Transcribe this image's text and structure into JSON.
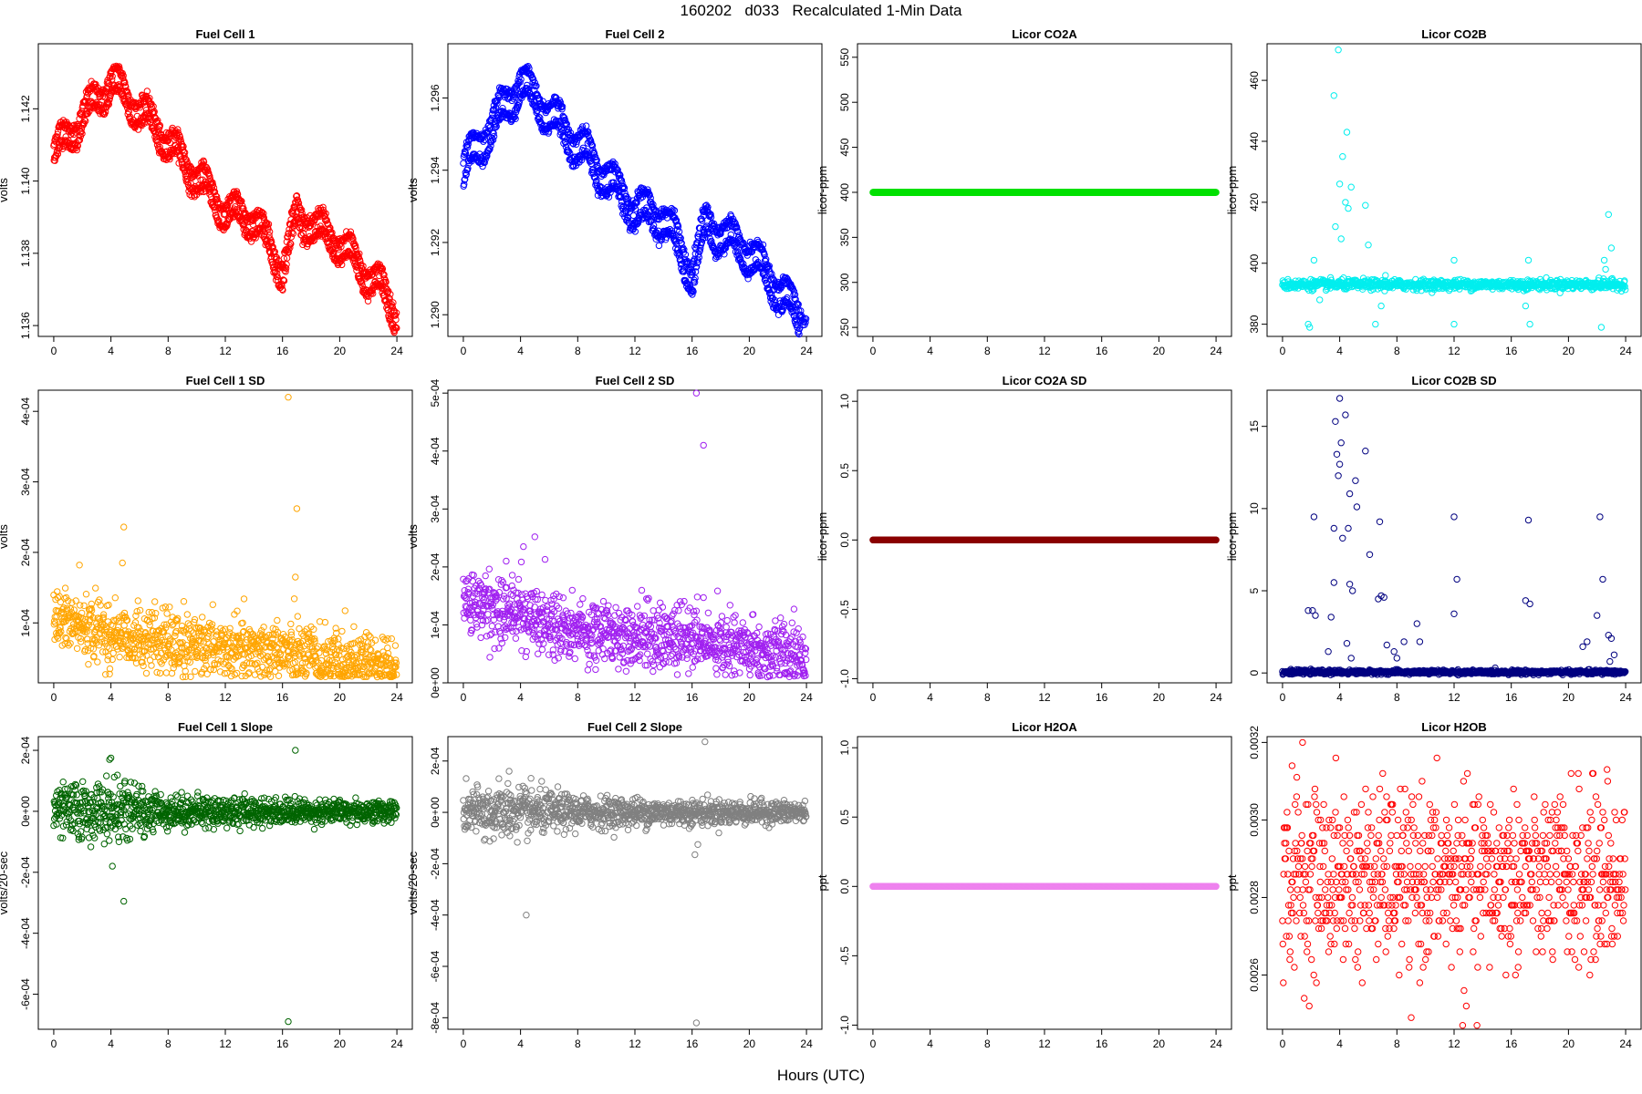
{
  "figure": {
    "title": "160202   d033   Recalculated 1-Min Data",
    "xlabel": "Hours (UTC)"
  },
  "chart_data": [
    {
      "type": "scatter",
      "title": "Fuel Cell 1",
      "ylabel": "volts",
      "xlim": [
        0,
        24
      ],
      "ylim": [
        1.1357,
        1.1438
      ],
      "x_ticks": [
        0,
        4,
        8,
        12,
        16,
        20,
        24
      ],
      "y_ticks": [
        1.136,
        1.138,
        1.14,
        1.142
      ],
      "y_tick_labels": [
        "1.136",
        "1.138",
        "1.140",
        "1.142"
      ],
      "color": "#ff0000",
      "pattern": {
        "kind": "dual_band",
        "keys": [
          [
            0,
            1.141
          ],
          [
            4,
            1.143
          ],
          [
            7,
            1.1418
          ],
          [
            12,
            1.1394
          ],
          [
            14,
            1.1392
          ],
          [
            16,
            1.1378
          ],
          [
            17,
            1.1393
          ],
          [
            20,
            1.1385
          ],
          [
            23,
            1.1372
          ],
          [
            24,
            1.1366
          ]
        ],
        "offset": -0.0005,
        "noise": 0.00015
      }
    },
    {
      "type": "scatter",
      "title": "Fuel Cell 2",
      "ylabel": "volts",
      "xlim": [
        0,
        24
      ],
      "ylim": [
        1.2894,
        1.2975
      ],
      "x_ticks": [
        0,
        4,
        8,
        12,
        16,
        20,
        24
      ],
      "y_ticks": [
        1.29,
        1.292,
        1.294,
        1.296
      ],
      "y_tick_labels": [
        "1.290",
        "1.292",
        "1.294",
        "1.296"
      ],
      "color": "#0000ff",
      "pattern": {
        "kind": "dual_band",
        "keys": [
          [
            0,
            1.2943
          ],
          [
            4,
            1.2967
          ],
          [
            8,
            1.295
          ],
          [
            12,
            1.2932
          ],
          [
            14,
            1.293
          ],
          [
            16,
            1.2914
          ],
          [
            17,
            1.2928
          ],
          [
            20,
            1.292
          ],
          [
            23,
            1.2905
          ],
          [
            24,
            1.29
          ]
        ],
        "offset": -0.0006,
        "noise": 0.00015
      }
    },
    {
      "type": "scatter",
      "title": "Licor CO2A",
      "ylabel": "licor-ppm",
      "xlim": [
        0,
        24
      ],
      "ylim": [
        240,
        565
      ],
      "x_ticks": [
        0,
        4,
        8,
        12,
        16,
        20,
        24
      ],
      "y_ticks": [
        250,
        300,
        350,
        400,
        450,
        500,
        550
      ],
      "y_tick_labels": [
        "250",
        "300",
        "350",
        "400",
        "450",
        "500",
        "550"
      ],
      "color": "#00e000",
      "pattern": {
        "kind": "flat",
        "value": 400
      }
    },
    {
      "type": "scatter",
      "title": "Licor CO2B",
      "ylabel": "licor-ppm",
      "xlim": [
        0,
        24
      ],
      "ylim": [
        376,
        472
      ],
      "x_ticks": [
        0,
        4,
        8,
        12,
        16,
        20,
        24
      ],
      "y_ticks": [
        380,
        400,
        420,
        440,
        460
      ],
      "y_tick_labels": [
        "380",
        "400",
        "420",
        "440",
        "460"
      ],
      "color": "#00eeee",
      "pattern": {
        "kind": "baseline_spikes",
        "base": 393,
        "noise": 0.8,
        "spikes": [
          [
            3.6,
            455
          ],
          [
            3.9,
            470
          ],
          [
            4.2,
            435
          ],
          [
            4.5,
            443
          ],
          [
            4.0,
            426
          ],
          [
            4.8,
            425
          ],
          [
            4.4,
            420
          ],
          [
            4.6,
            418
          ],
          [
            3.7,
            412
          ],
          [
            5.8,
            419
          ],
          [
            6.0,
            406
          ],
          [
            7.2,
            396
          ],
          [
            4.1,
            408
          ],
          [
            2.2,
            401
          ],
          [
            2.6,
            388
          ],
          [
            1.8,
            380
          ],
          [
            1.9,
            379
          ],
          [
            6.5,
            380
          ],
          [
            6.9,
            386
          ],
          [
            12,
            401
          ],
          [
            12,
            380
          ],
          [
            17.2,
            401
          ],
          [
            17.0,
            386
          ],
          [
            17.3,
            380
          ],
          [
            22.5,
            401
          ],
          [
            22.8,
            416
          ],
          [
            23.0,
            405
          ],
          [
            22.3,
            379
          ],
          [
            22.6,
            398
          ],
          [
            23.2,
            393
          ]
        ]
      }
    },
    {
      "type": "scatter",
      "title": "Fuel Cell 1 SD",
      "ylabel": "volts",
      "xlim": [
        0,
        24
      ],
      "ylim": [
        1.5e-05,
        0.00043
      ],
      "x_ticks": [
        0,
        4,
        8,
        12,
        16,
        20,
        24
      ],
      "y_ticks": [
        0.0001,
        0.0002,
        0.0003,
        0.0004
      ],
      "y_tick_labels": [
        "1e-04",
        "2e-04",
        "3e-04",
        "4e-04"
      ],
      "color": "#ffa500",
      "pattern": {
        "kind": "decay_noise",
        "keys": [
          [
            0,
            0.000105
          ],
          [
            8,
            6.8e-05
          ],
          [
            16,
            5.8e-05
          ],
          [
            20,
            4.5e-05
          ],
          [
            24,
            4e-05
          ]
        ],
        "spread": 2.2e-05,
        "outliers": [
          [
            16.4,
            0.00042
          ],
          [
            17,
            0.000262
          ],
          [
            4.9,
            0.000236
          ],
          [
            4.8,
            0.000185
          ],
          [
            1.8,
            0.000182
          ],
          [
            16.9,
            0.000165
          ]
        ]
      }
    },
    {
      "type": "scatter",
      "title": "Fuel Cell 2 SD",
      "ylabel": "volts",
      "xlim": [
        0,
        24
      ],
      "ylim": [
        0.0,
        0.000505
      ],
      "x_ticks": [
        0,
        4,
        8,
        12,
        16,
        20,
        24
      ],
      "y_ticks": [
        0,
        0.0001,
        0.0002,
        0.0003,
        0.0004,
        0.0005
      ],
      "y_tick_labels": [
        "0e+00",
        "1e-04",
        "2e-04",
        "3e-04",
        "4e-04",
        "5e-04"
      ],
      "color": "#a020f0",
      "pattern": {
        "kind": "decay_noise",
        "keys": [
          [
            0,
            0.00014
          ],
          [
            4,
            0.00012
          ],
          [
            8,
            9e-05
          ],
          [
            16,
            7.5e-05
          ],
          [
            20,
            5.5e-05
          ],
          [
            24,
            5e-05
          ]
        ],
        "spread": 2.8e-05,
        "outliers": [
          [
            16.3,
            0.0005
          ],
          [
            16.8,
            0.00041
          ],
          [
            5,
            0.000252
          ],
          [
            4.2,
            0.000235
          ],
          [
            3.0,
            0.00021
          ]
        ]
      }
    },
    {
      "type": "scatter",
      "title": "Licor CO2A SD",
      "ylabel": "licor-ppm",
      "xlim": [
        0,
        24
      ],
      "ylim": [
        -1.03,
        1.08
      ],
      "x_ticks": [
        0,
        4,
        8,
        12,
        16,
        20,
        24
      ],
      "y_ticks": [
        -1.0,
        -0.5,
        0.0,
        0.5,
        1.0
      ],
      "y_tick_labels": [
        "-1.0",
        "-0.5",
        "0.0",
        "0.5",
        "1.0"
      ],
      "color": "#8b0000",
      "pattern": {
        "kind": "flat",
        "value": 0
      }
    },
    {
      "type": "scatter",
      "title": "Licor CO2B SD",
      "ylabel": "licor-ppm",
      "xlim": [
        0,
        24
      ],
      "ylim": [
        -0.6,
        17.2
      ],
      "x_ticks": [
        0,
        4,
        8,
        12,
        16,
        20,
        24
      ],
      "y_ticks": [
        0,
        5,
        10,
        15
      ],
      "y_tick_labels": [
        "0",
        "5",
        "10",
        "15"
      ],
      "color": "#000080",
      "pattern": {
        "kind": "baseline_spikes",
        "base": 0.05,
        "noise": 0.06,
        "spikes": [
          [
            4.0,
            16.7
          ],
          [
            4.4,
            15.7
          ],
          [
            3.7,
            15.3
          ],
          [
            4.1,
            14
          ],
          [
            3.8,
            13.3
          ],
          [
            5.8,
            13.5
          ],
          [
            4.0,
            12.7
          ],
          [
            3.9,
            12
          ],
          [
            5.1,
            11.7
          ],
          [
            4.7,
            10.9
          ],
          [
            5.2,
            10.1
          ],
          [
            2.2,
            9.5
          ],
          [
            12,
            9.5
          ],
          [
            17.2,
            9.3
          ],
          [
            22.2,
            9.5
          ],
          [
            6.8,
            9.2
          ],
          [
            4.6,
            8.8
          ],
          [
            3.6,
            8.8
          ],
          [
            4.2,
            8.2
          ],
          [
            6.1,
            7.2
          ],
          [
            12.2,
            5.7
          ],
          [
            22.4,
            5.7
          ],
          [
            4.7,
            5.4
          ],
          [
            3.6,
            5.5
          ],
          [
            4.9,
            5
          ],
          [
            6.7,
            4.5
          ],
          [
            6.9,
            4.7
          ],
          [
            7.1,
            4.6
          ],
          [
            1.8,
            3.8
          ],
          [
            2.1,
            3.8
          ],
          [
            2.3,
            3.5
          ],
          [
            17.0,
            4.4
          ],
          [
            17.3,
            4.2
          ],
          [
            3.4,
            3.4
          ],
          [
            22.0,
            3.5
          ],
          [
            12,
            3.6
          ],
          [
            9.4,
            3
          ],
          [
            8.5,
            1.9
          ],
          [
            9.6,
            1.9
          ],
          [
            22.8,
            2.3
          ],
          [
            23,
            2.1
          ],
          [
            21.0,
            1.6
          ],
          [
            21.3,
            1.9
          ],
          [
            7.3,
            1.7
          ],
          [
            7.8,
            1.3
          ],
          [
            8.0,
            0.9
          ],
          [
            4.5,
            1.8
          ],
          [
            4.8,
            0.9
          ],
          [
            3.2,
            1.3
          ],
          [
            23.2,
            1.1
          ],
          [
            22.9,
            0.7
          ]
        ]
      }
    },
    {
      "type": "scatter",
      "title": "Fuel Cell 1 Slope",
      "ylabel": "volts/20-sec",
      "xlim": [
        0,
        24
      ],
      "ylim": [
        -0.000715,
        0.000245
      ],
      "x_ticks": [
        0,
        4,
        8,
        12,
        16,
        20,
        24
      ],
      "y_ticks": [
        -0.0006,
        -0.0004,
        -0.0002,
        0,
        0.0002
      ],
      "y_tick_labels": [
        "-6e-04",
        "-4e-04",
        "-2e-04",
        "0e+00",
        "2e-04"
      ],
      "color": "#006400",
      "pattern": {
        "kind": "center_noise",
        "keys": [
          [
            0,
            5.5e-05
          ],
          [
            2,
            7e-05
          ],
          [
            5,
            6.5e-05
          ],
          [
            8,
            4e-05
          ],
          [
            16,
            3e-05
          ],
          [
            24,
            2.5e-05
          ]
        ],
        "outliers": [
          [
            16.4,
            -0.00069
          ],
          [
            4.9,
            -0.000295
          ],
          [
            4.1,
            -0.00018
          ],
          [
            16.9,
            0.0002
          ],
          [
            4.0,
            0.000175
          ],
          [
            3.9,
            0.00017
          ]
        ]
      }
    },
    {
      "type": "scatter",
      "title": "Fuel Cell 2 Slope",
      "ylabel": "volts/20-sec",
      "xlim": [
        0,
        24
      ],
      "ylim": [
        -0.000845,
        0.000295
      ],
      "x_ticks": [
        0,
        4,
        8,
        12,
        16,
        20,
        24
      ],
      "y_ticks": [
        -0.0008,
        -0.0006,
        -0.0004,
        -0.0002,
        0,
        0.0002
      ],
      "y_tick_labels": [
        "-8e-04",
        "-6e-04",
        "-4e-04",
        "-2e-04",
        "0e+00",
        "2e-04"
      ],
      "color": "#808080",
      "pattern": {
        "kind": "center_noise",
        "keys": [
          [
            0,
            6e-05
          ],
          [
            2,
            8e-05
          ],
          [
            5,
            6.5e-05
          ],
          [
            8,
            4.5e-05
          ],
          [
            16,
            3.5e-05
          ],
          [
            24,
            3e-05
          ]
        ],
        "outliers": [
          [
            16.3,
            -0.00082
          ],
          [
            16.9,
            0.000275
          ],
          [
            4.4,
            -0.0004
          ],
          [
            16.2,
            -0.000165
          ],
          [
            16.4,
            -0.000125
          ],
          [
            3.2,
            0.00016
          ]
        ]
      }
    },
    {
      "type": "scatter",
      "title": "Licor H2OA",
      "ylabel": "ppt",
      "xlim": [
        0,
        24
      ],
      "ylim": [
        -1.03,
        1.08
      ],
      "x_ticks": [
        0,
        4,
        8,
        12,
        16,
        20,
        24
      ],
      "y_ticks": [
        -1.0,
        -0.5,
        0.0,
        0.5,
        1.0
      ],
      "y_tick_labels": [
        "-1.0",
        "-0.5",
        "0.0",
        "0.5",
        "1.0"
      ],
      "color": "#ee82ee",
      "pattern": {
        "kind": "flat",
        "value": 0
      }
    },
    {
      "type": "scatter",
      "title": "Licor H2OB",
      "ylabel": "ppt",
      "xlim": [
        0,
        24
      ],
      "ylim": [
        0.00246,
        0.003215
      ],
      "x_ticks": [
        0,
        4,
        8,
        12,
        16,
        20,
        24
      ],
      "y_ticks": [
        0.0026,
        0.0028,
        0.003,
        0.0032
      ],
      "y_tick_labels": [
        "0.0026",
        "0.0028",
        "0.0030",
        "0.0032"
      ],
      "color": "#ff0000",
      "pattern": {
        "kind": "quantized",
        "center": 0.00285,
        "step": 2e-05,
        "spread": 0.00011,
        "outliers": [
          [
            1.4,
            0.0032
          ],
          [
            12.6,
            0.00247
          ],
          [
            13.6,
            0.00247
          ],
          [
            9,
            0.00249
          ],
          [
            22.7,
            0.00313
          ],
          [
            1.0,
            0.00311
          ]
        ]
      }
    }
  ]
}
